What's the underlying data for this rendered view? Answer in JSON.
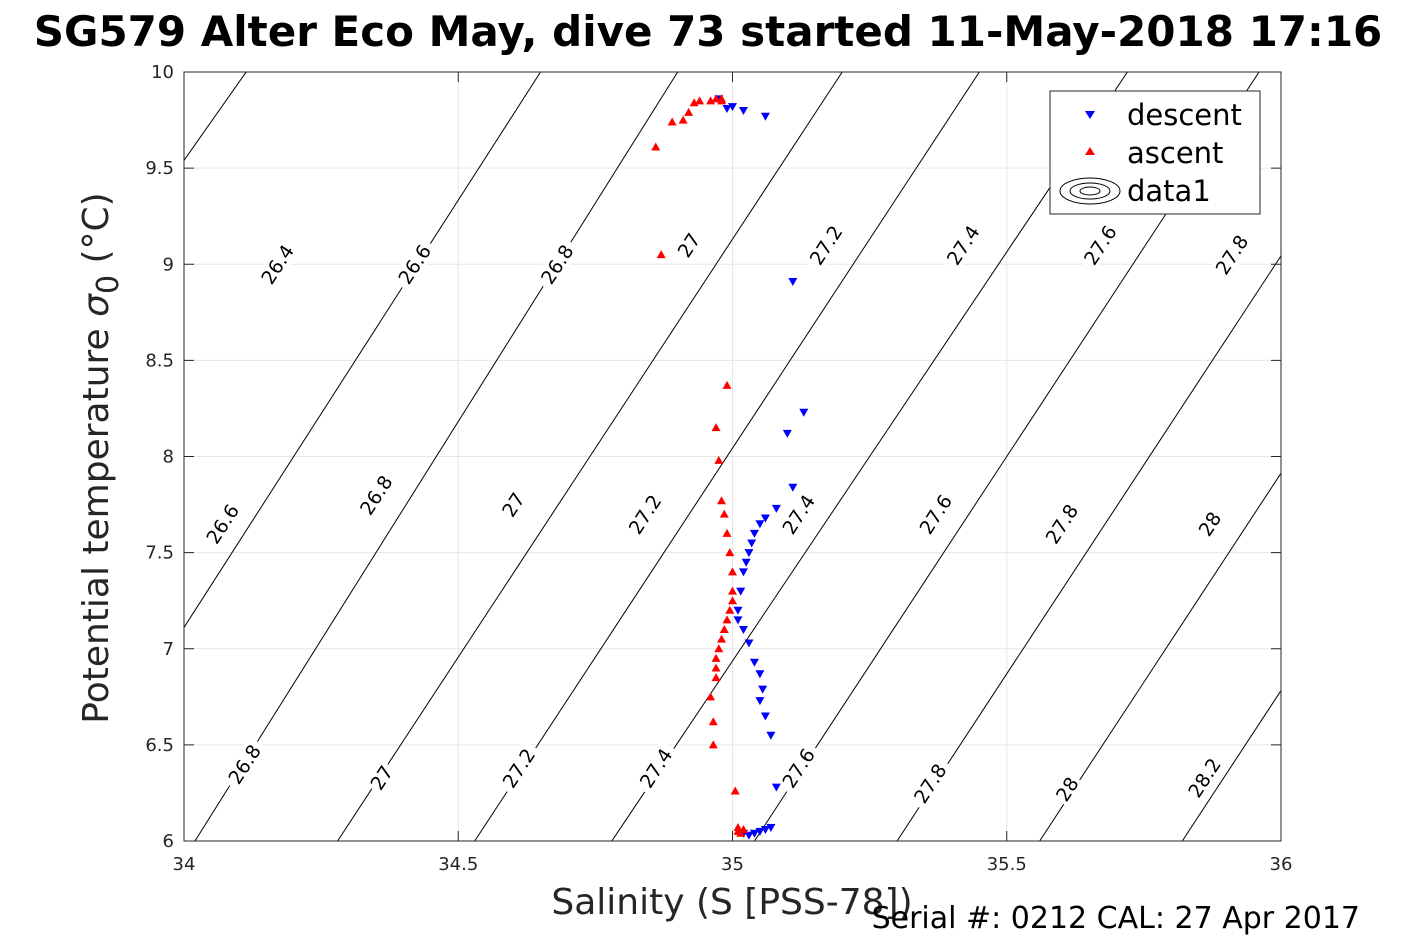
{
  "figure": {
    "title": "SG579 Alter Eco May, dive 73 started 11-May-2018 17:16",
    "footer": "Serial #: 0212  CAL: 27 Apr 2017"
  },
  "colors": {
    "descent": "#0000ff",
    "ascent": "#ff0000",
    "contour": "#000000",
    "grid": "#e6e6e6"
  },
  "chart_data": {
    "type": "scatter",
    "xlabel": "Salinity (S [PSS-78])",
    "ylabel": "Potential temperature σ0 (°C)",
    "ylabel_main": "Potential temperature ",
    "ylabel_sigma": "σ",
    "ylabel_sub": "0",
    "ylabel_unit": " (°C)",
    "xlim": [
      34,
      36
    ],
    "ylim": [
      6,
      10
    ],
    "x_ticks": [
      34,
      34.5,
      35,
      35.5,
      36
    ],
    "x_tick_labels": [
      "34",
      "34.5",
      "35",
      "35.5",
      "36"
    ],
    "y_ticks": [
      6,
      6.5,
      7,
      7.5,
      8,
      8.5,
      9,
      9.5,
      10
    ],
    "y_tick_labels": [
      "6",
      "6.5",
      "7",
      "7.5",
      "8",
      "8.5",
      "9",
      "9.5",
      "10"
    ],
    "grid": true,
    "legend": {
      "placement": "top-right",
      "entries": [
        "descent",
        "ascent",
        "data1"
      ]
    },
    "series": [
      {
        "name": "descent",
        "marker": "triangle-down",
        "x": [
          34.975,
          34.99,
          35.0,
          35.02,
          35.06,
          35.11,
          35.1,
          35.13,
          35.11,
          35.08,
          35.06,
          35.05,
          35.04,
          35.035,
          35.03,
          35.025,
          35.02,
          35.015,
          35.01,
          35.01,
          35.02,
          35.03,
          35.04,
          35.05,
          35.055,
          35.05,
          35.06,
          35.07,
          35.08,
          35.07,
          35.06,
          35.05,
          35.04,
          35.03,
          35.02
        ],
        "y": [
          9.86,
          9.81,
          9.82,
          9.8,
          9.77,
          8.91,
          8.12,
          8.23,
          7.84,
          7.73,
          7.68,
          7.65,
          7.6,
          7.55,
          7.5,
          7.45,
          7.4,
          7.3,
          7.2,
          7.15,
          7.1,
          7.03,
          6.93,
          6.87,
          6.79,
          6.73,
          6.65,
          6.55,
          6.28,
          6.07,
          6.06,
          6.05,
          6.04,
          6.03,
          6.04
        ]
      },
      {
        "name": "ascent",
        "marker": "triangle-up",
        "x": [
          34.86,
          34.89,
          34.91,
          34.92,
          34.93,
          34.94,
          34.96,
          34.97,
          34.98,
          34.98,
          34.87,
          34.99,
          34.97,
          34.975,
          34.98,
          34.985,
          34.99,
          34.995,
          35.0,
          35.0,
          35.0,
          34.995,
          34.99,
          34.985,
          34.98,
          34.975,
          34.97,
          34.97,
          34.97,
          34.96,
          34.965,
          34.965,
          35.005,
          35.01,
          35.015,
          35.02,
          35.01
        ],
        "y": [
          9.61,
          9.74,
          9.75,
          9.79,
          9.84,
          9.85,
          9.85,
          9.86,
          9.86,
          9.85,
          9.05,
          8.37,
          8.15,
          7.98,
          7.77,
          7.7,
          7.6,
          7.5,
          7.4,
          7.3,
          7.25,
          7.2,
          7.15,
          7.1,
          7.05,
          7.0,
          6.95,
          6.9,
          6.85,
          6.75,
          6.62,
          6.5,
          6.26,
          6.05,
          6.04,
          6.06,
          6.07
        ]
      }
    ],
    "contour_levels": [
      {
        "label": "26.4",
        "line": [
          [
            33.62,
            8.0
          ],
          [
            34.36,
            11.0
          ]
        ]
      },
      {
        "label": "26.6",
        "line": [
          [
            33.75,
            6.0
          ],
          [
            34.65,
            10.0
          ]
        ]
      },
      {
        "label": "26.8",
        "line": [
          [
            34.02,
            6.0
          ],
          [
            34.9,
            10.0
          ]
        ]
      },
      {
        "label": "27",
        "line": [
          [
            34.28,
            6.0
          ],
          [
            35.2,
            10.0
          ]
        ]
      },
      {
        "label": "27.2",
        "line": [
          [
            34.53,
            6.0
          ],
          [
            35.45,
            10.0
          ]
        ]
      },
      {
        "label": "27.4",
        "line": [
          [
            34.78,
            6.0
          ],
          [
            35.72,
            10.0
          ]
        ]
      },
      {
        "label": "27.6",
        "line": [
          [
            35.04,
            6.0
          ],
          [
            35.96,
            10.0
          ]
        ]
      },
      {
        "label": "27.8",
        "line": [
          [
            35.3,
            6.0
          ],
          [
            36.22,
            10.0
          ]
        ]
      },
      {
        "label": "28",
        "line": [
          [
            35.56,
            6.0
          ],
          [
            36.48,
            10.0
          ]
        ]
      },
      {
        "label": "28.2",
        "line": [
          [
            35.82,
            6.0
          ],
          [
            36.74,
            10.0
          ]
        ]
      }
    ],
    "contour_labels": [
      {
        "text": "26.4",
        "x": 34.17,
        "y": 9.0
      },
      {
        "text": "26.6",
        "x": 34.42,
        "y": 9.0
      },
      {
        "text": "26.8",
        "x": 34.68,
        "y": 9.0
      },
      {
        "text": "27",
        "x": 34.92,
        "y": 9.1
      },
      {
        "text": "27.2",
        "x": 35.17,
        "y": 9.1
      },
      {
        "text": "27.4",
        "x": 35.42,
        "y": 9.1
      },
      {
        "text": "27.6",
        "x": 35.67,
        "y": 9.1
      },
      {
        "text": "27.8",
        "x": 35.91,
        "y": 9.05
      },
      {
        "text": "26.6",
        "x": 34.07,
        "y": 7.65
      },
      {
        "text": "26.8",
        "x": 34.35,
        "y": 7.8
      },
      {
        "text": "27",
        "x": 34.6,
        "y": 7.75
      },
      {
        "text": "27.2",
        "x": 34.84,
        "y": 7.7
      },
      {
        "text": "27.4",
        "x": 35.12,
        "y": 7.7
      },
      {
        "text": "27.6",
        "x": 35.37,
        "y": 7.7
      },
      {
        "text": "27.8",
        "x": 35.6,
        "y": 7.65
      },
      {
        "text": "28",
        "x": 35.87,
        "y": 7.65
      },
      {
        "text": "26.8",
        "x": 34.11,
        "y": 6.4
      },
      {
        "text": "27",
        "x": 34.36,
        "y": 6.33
      },
      {
        "text": "27.2",
        "x": 34.61,
        "y": 6.38
      },
      {
        "text": "27.4",
        "x": 34.86,
        "y": 6.38
      },
      {
        "text": "27.6",
        "x": 35.12,
        "y": 6.38
      },
      {
        "text": "27.8",
        "x": 35.36,
        "y": 6.3
      },
      {
        "text": "28",
        "x": 35.61,
        "y": 6.27
      },
      {
        "text": "28.2",
        "x": 35.86,
        "y": 6.33
      }
    ]
  }
}
